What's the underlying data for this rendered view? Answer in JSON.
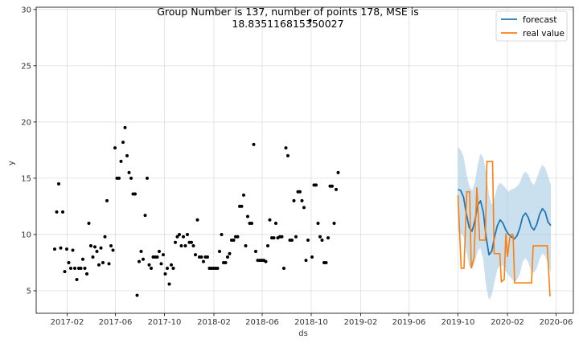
{
  "chart_data": {
    "type": "scatter",
    "title_lines": [
      "Group Number is 137, number of points 178, MSE is",
      "18.835116815350027"
    ],
    "xlabel": "ds",
    "ylabel": "y",
    "x_ticks": [
      "2017-02",
      "2017-06",
      "2017-10",
      "2018-02",
      "2018-06",
      "2018-10",
      "2019-02",
      "2019-06",
      "2019-10",
      "2020-02",
      "2020-06"
    ],
    "y_ticks": [
      5,
      10,
      15,
      20,
      25,
      30
    ],
    "xlim": [
      "2016-11-16",
      "2020-07-14"
    ],
    "ylim": [
      3,
      30.2
    ],
    "grid": true,
    "legend_position": "top-right",
    "colors": {
      "observed": "#000000",
      "forecast": "#1f77b4",
      "real_value": "#ff7f0e",
      "interval": "#a6cbe3"
    },
    "series": [
      {
        "name": "observed",
        "type": "scatter",
        "points": [
          [
            "2017-01-01",
            8.7
          ],
          [
            "2017-01-06",
            12.0
          ],
          [
            "2017-01-11",
            14.5
          ],
          [
            "2017-01-16",
            8.8
          ],
          [
            "2017-01-21",
            12.0
          ],
          [
            "2017-01-26",
            6.7
          ],
          [
            "2017-01-31",
            8.7
          ],
          [
            "2017-02-05",
            7.5
          ],
          [
            "2017-02-10",
            7.0
          ],
          [
            "2017-02-15",
            8.6
          ],
          [
            "2017-02-20",
            7.0
          ],
          [
            "2017-02-25",
            6.0
          ],
          [
            "2017-03-02",
            7.0
          ],
          [
            "2017-03-07",
            7.0
          ],
          [
            "2017-03-12",
            7.8
          ],
          [
            "2017-03-17",
            7.0
          ],
          [
            "2017-03-22",
            6.5
          ],
          [
            "2017-03-27",
            11.0
          ],
          [
            "2017-04-01",
            9.0
          ],
          [
            "2017-04-06",
            8.0
          ],
          [
            "2017-04-11",
            8.9
          ],
          [
            "2017-04-16",
            8.5
          ],
          [
            "2017-04-21",
            7.3
          ],
          [
            "2017-04-26",
            8.8
          ],
          [
            "2017-05-01",
            7.5
          ],
          [
            "2017-05-06",
            9.8
          ],
          [
            "2017-05-11",
            13.0
          ],
          [
            "2017-05-16",
            7.4
          ],
          [
            "2017-05-21",
            9.0
          ],
          [
            "2017-05-26",
            8.6
          ],
          [
            "2017-05-31",
            17.7
          ],
          [
            "2017-06-05",
            15.0
          ],
          [
            "2017-06-10",
            15.0
          ],
          [
            "2017-06-15",
            16.5
          ],
          [
            "2017-06-20",
            18.2
          ],
          [
            "2017-06-25",
            19.5
          ],
          [
            "2017-06-30",
            17.0
          ],
          [
            "2017-07-05",
            15.5
          ],
          [
            "2017-07-10",
            15.0
          ],
          [
            "2017-07-15",
            13.6
          ],
          [
            "2017-07-20",
            13.6
          ],
          [
            "2017-07-25",
            4.6
          ],
          [
            "2017-07-30",
            7.6
          ],
          [
            "2017-08-04",
            8.5
          ],
          [
            "2017-08-09",
            7.8
          ],
          [
            "2017-08-14",
            11.7
          ],
          [
            "2017-08-19",
            15.0
          ],
          [
            "2017-08-24",
            7.3
          ],
          [
            "2017-08-29",
            7.0
          ],
          [
            "2017-09-03",
            8.0
          ],
          [
            "2017-09-08",
            8.0
          ],
          [
            "2017-09-13",
            8.0
          ],
          [
            "2017-09-18",
            8.5
          ],
          [
            "2017-09-23",
            7.4
          ],
          [
            "2017-09-28",
            8.2
          ],
          [
            "2017-10-03",
            6.5
          ],
          [
            "2017-10-08",
            7.0
          ],
          [
            "2017-10-13",
            5.6
          ],
          [
            "2017-10-18",
            7.3
          ],
          [
            "2017-10-23",
            7.0
          ],
          [
            "2017-10-28",
            9.3
          ],
          [
            "2017-11-02",
            9.8
          ],
          [
            "2017-11-07",
            10.0
          ],
          [
            "2017-11-12",
            9.0
          ],
          [
            "2017-11-17",
            9.8
          ],
          [
            "2017-11-22",
            9.0
          ],
          [
            "2017-11-27",
            10.0
          ],
          [
            "2017-12-02",
            9.3
          ],
          [
            "2017-12-07",
            9.3
          ],
          [
            "2017-12-12",
            9.0
          ],
          [
            "2017-12-17",
            8.2
          ],
          [
            "2017-12-22",
            11.3
          ],
          [
            "2017-12-27",
            8.0
          ],
          [
            "2018-01-01",
            8.0
          ],
          [
            "2018-01-06",
            7.6
          ],
          [
            "2018-01-11",
            8.0
          ],
          [
            "2018-01-16",
            8.0
          ],
          [
            "2018-01-21",
            7.0
          ],
          [
            "2018-01-26",
            7.0
          ],
          [
            "2018-01-31",
            7.0
          ],
          [
            "2018-02-05",
            7.0
          ],
          [
            "2018-02-10",
            7.0
          ],
          [
            "2018-02-15",
            8.5
          ],
          [
            "2018-02-20",
            10.0
          ],
          [
            "2018-02-25",
            7.5
          ],
          [
            "2018-03-02",
            7.5
          ],
          [
            "2018-03-07",
            8.0
          ],
          [
            "2018-03-12",
            8.3
          ],
          [
            "2018-03-17",
            9.5
          ],
          [
            "2018-03-22",
            9.5
          ],
          [
            "2018-03-27",
            9.8
          ],
          [
            "2018-04-01",
            9.8
          ],
          [
            "2018-04-06",
            12.5
          ],
          [
            "2018-04-11",
            12.5
          ],
          [
            "2018-04-16",
            13.5
          ],
          [
            "2018-04-21",
            9.0
          ],
          [
            "2018-04-26",
            11.6
          ],
          [
            "2018-05-01",
            11.0
          ],
          [
            "2018-05-06",
            11.0
          ],
          [
            "2018-05-11",
            18.0
          ],
          [
            "2018-05-16",
            8.5
          ],
          [
            "2018-05-21",
            7.7
          ],
          [
            "2018-05-26",
            7.7
          ],
          [
            "2018-05-31",
            7.7
          ],
          [
            "2018-06-05",
            7.7
          ],
          [
            "2018-06-10",
            7.6
          ],
          [
            "2018-06-15",
            9.0
          ],
          [
            "2018-06-20",
            11.3
          ],
          [
            "2018-06-25",
            9.7
          ],
          [
            "2018-06-30",
            9.7
          ],
          [
            "2018-07-05",
            11.0
          ],
          [
            "2018-07-10",
            9.7
          ],
          [
            "2018-07-15",
            9.8
          ],
          [
            "2018-07-20",
            9.8
          ],
          [
            "2018-07-25",
            7.0
          ],
          [
            "2018-07-30",
            17.7
          ],
          [
            "2018-08-04",
            17.0
          ],
          [
            "2018-08-09",
            9.5
          ],
          [
            "2018-08-14",
            9.5
          ],
          [
            "2018-08-19",
            13.0
          ],
          [
            "2018-08-24",
            9.8
          ],
          [
            "2018-08-29",
            13.8
          ],
          [
            "2018-09-03",
            13.8
          ],
          [
            "2018-09-08",
            13.0
          ],
          [
            "2018-09-13",
            12.4
          ],
          [
            "2018-09-18",
            7.7
          ],
          [
            "2018-09-23",
            9.5
          ],
          [
            "2018-09-28",
            29.0
          ],
          [
            "2018-10-03",
            8.0
          ],
          [
            "2018-10-08",
            14.4
          ],
          [
            "2018-10-13",
            14.4
          ],
          [
            "2018-10-18",
            11.0
          ],
          [
            "2018-10-23",
            9.8
          ],
          [
            "2018-10-28",
            9.5
          ],
          [
            "2018-11-02",
            7.5
          ],
          [
            "2018-11-07",
            7.5
          ],
          [
            "2018-11-12",
            9.7
          ],
          [
            "2018-11-17",
            14.3
          ],
          [
            "2018-11-22",
            14.3
          ],
          [
            "2018-11-27",
            11.0
          ],
          [
            "2018-12-02",
            14.0
          ],
          [
            "2018-12-07",
            15.5
          ]
        ]
      },
      {
        "name": "forecast",
        "type": "line",
        "points": [
          [
            "2019-10-01",
            14.0
          ],
          [
            "2019-10-08",
            13.9
          ],
          [
            "2019-10-15",
            13.3
          ],
          [
            "2019-10-22",
            11.8
          ],
          [
            "2019-10-29",
            10.6
          ],
          [
            "2019-11-05",
            10.3
          ],
          [
            "2019-11-12",
            11.2
          ],
          [
            "2019-11-19",
            12.6
          ],
          [
            "2019-11-26",
            13.0
          ],
          [
            "2019-12-03",
            12.0
          ],
          [
            "2019-12-10",
            9.8
          ],
          [
            "2019-12-17",
            8.2
          ],
          [
            "2019-12-24",
            8.5
          ],
          [
            "2019-12-31",
            9.8
          ],
          [
            "2020-01-07",
            10.8
          ],
          [
            "2020-01-14",
            11.3
          ],
          [
            "2020-01-21",
            11.0
          ],
          [
            "2020-01-28",
            10.4
          ],
          [
            "2020-02-04",
            10.0
          ],
          [
            "2020-02-11",
            9.8
          ],
          [
            "2020-02-18",
            9.6
          ],
          [
            "2020-02-25",
            9.9
          ],
          [
            "2020-03-03",
            10.6
          ],
          [
            "2020-03-10",
            11.6
          ],
          [
            "2020-03-17",
            11.9
          ],
          [
            "2020-03-24",
            11.5
          ],
          [
            "2020-03-31",
            10.7
          ],
          [
            "2020-04-07",
            10.4
          ],
          [
            "2020-04-14",
            10.9
          ],
          [
            "2020-04-21",
            11.8
          ],
          [
            "2020-04-28",
            12.3
          ],
          [
            "2020-05-05",
            12.0
          ],
          [
            "2020-05-12",
            11.1
          ],
          [
            "2020-05-19",
            10.8
          ]
        ],
        "upper": [
          17.8,
          17.5,
          16.9,
          15.4,
          14.3,
          13.9,
          14.6,
          16.2,
          17.2,
          16.8,
          15.5,
          13.6,
          12.6,
          13.3,
          14.3,
          14.6,
          14.4,
          14.1,
          13.8,
          14.0,
          14.1,
          14.3,
          14.6,
          15.3,
          15.6,
          15.3,
          14.7,
          14.4,
          15.0,
          15.7,
          16.2,
          15.9,
          15.2,
          14.4
        ],
        "lower": [
          10.3,
          10.1,
          9.8,
          8.5,
          7.2,
          6.9,
          7.5,
          8.5,
          8.8,
          7.7,
          5.4,
          4.2,
          4.6,
          5.8,
          6.9,
          7.3,
          7.2,
          6.7,
          6.4,
          6.1,
          5.8,
          6.0,
          6.5,
          7.6,
          7.9,
          7.5,
          6.7,
          6.6,
          7.0,
          7.8,
          8.3,
          8.1,
          7.4,
          6.6
        ]
      },
      {
        "name": "real value",
        "type": "line",
        "points": [
          [
            "2019-10-01",
            13.5
          ],
          [
            "2019-10-09",
            7.0
          ],
          [
            "2019-10-16",
            7.0
          ],
          [
            "2019-10-23",
            13.8
          ],
          [
            "2019-10-30",
            13.8
          ],
          [
            "2019-11-03",
            7.0
          ],
          [
            "2019-11-10",
            8.0
          ],
          [
            "2019-11-17",
            14.2
          ],
          [
            "2019-11-24",
            9.5
          ],
          [
            "2019-12-01",
            9.5
          ],
          [
            "2019-12-08",
            9.5
          ],
          [
            "2019-12-12",
            16.5
          ],
          [
            "2019-12-19",
            16.5
          ],
          [
            "2019-12-26",
            16.5
          ],
          [
            "2019-12-30",
            8.3
          ],
          [
            "2020-01-06",
            8.3
          ],
          [
            "2020-01-13",
            8.3
          ],
          [
            "2020-01-17",
            5.8
          ],
          [
            "2020-01-24",
            6.0
          ],
          [
            "2020-01-28",
            10.1
          ],
          [
            "2020-02-01",
            8.0
          ],
          [
            "2020-02-08",
            10.0
          ],
          [
            "2020-02-15",
            10.0
          ],
          [
            "2020-02-19",
            5.7
          ],
          [
            "2020-02-26",
            5.7
          ],
          [
            "2020-03-04",
            5.7
          ],
          [
            "2020-03-11",
            5.7
          ],
          [
            "2020-03-18",
            5.7
          ],
          [
            "2020-03-25",
            5.7
          ],
          [
            "2020-04-01",
            5.7
          ],
          [
            "2020-04-05",
            9.0
          ],
          [
            "2020-04-12",
            9.0
          ],
          [
            "2020-04-19",
            9.0
          ],
          [
            "2020-04-26",
            9.0
          ],
          [
            "2020-05-03",
            9.0
          ],
          [
            "2020-05-10",
            9.0
          ],
          [
            "2020-05-17",
            4.5
          ]
        ]
      }
    ],
    "legend": [
      {
        "label": "forecast",
        "color": "#1f77b4"
      },
      {
        "label": "real value",
        "color": "#ff7f0e"
      }
    ]
  }
}
